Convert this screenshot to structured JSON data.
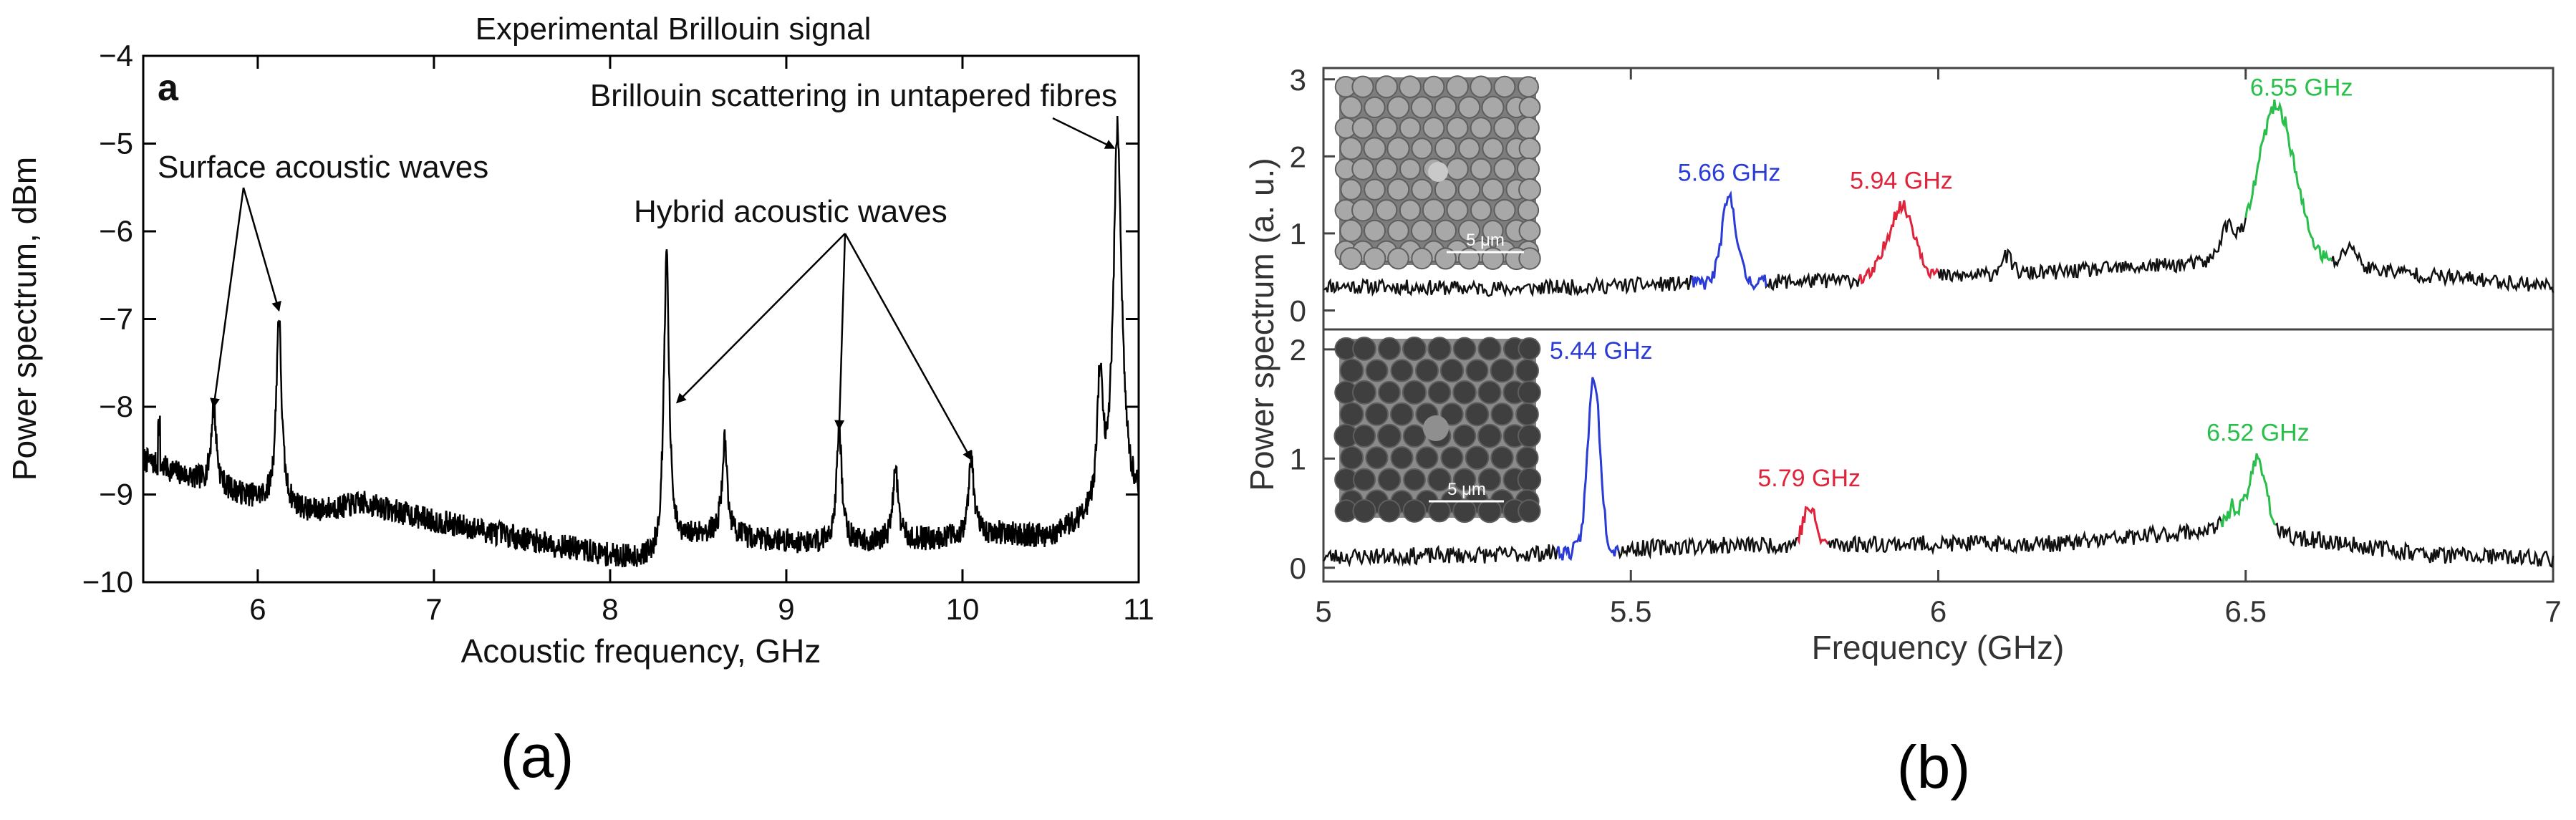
{
  "chart_data": [
    {
      "id": "a",
      "type": "line",
      "title": "Experimental Brillouin signal",
      "panel_letter": "a",
      "xlabel": "Acoustic frequency, GHz",
      "ylabel": "Power spectrum, dBm",
      "xlim": [
        5.35,
        11.0
      ],
      "ylim": [
        -10,
        -4
      ],
      "xticks": [
        6,
        7,
        8,
        9,
        10,
        11
      ],
      "yticks": [
        -10,
        -9,
        -8,
        -7,
        -6,
        -5,
        -4
      ],
      "baseline": [
        [
          5.35,
          -8.6
        ],
        [
          5.6,
          -8.8
        ],
        [
          5.9,
          -9.0
        ],
        [
          6.3,
          -9.2
        ],
        [
          6.6,
          -9.1
        ],
        [
          7.0,
          -9.3
        ],
        [
          7.5,
          -9.5
        ],
        [
          8.0,
          -9.7
        ],
        [
          8.25,
          -9.75
        ],
        [
          8.5,
          -9.45
        ],
        [
          8.8,
          -9.5
        ],
        [
          9.1,
          -9.55
        ],
        [
          9.5,
          -9.55
        ],
        [
          9.9,
          -9.5
        ],
        [
          10.2,
          -9.45
        ],
        [
          10.5,
          -9.5
        ],
        [
          10.7,
          -9.3
        ],
        [
          11.0,
          -9.1
        ]
      ],
      "series": [
        {
          "name": "Brillouin signal",
          "color": "#000000",
          "peaks": [
            [
              5.75,
              -8.0
            ],
            [
              6.12,
              -6.95
            ],
            [
              8.32,
              -6.25
            ],
            [
              8.65,
              -8.4
            ],
            [
              9.3,
              -8.25
            ],
            [
              9.62,
              -8.7
            ],
            [
              10.05,
              -8.6
            ],
            [
              10.78,
              -7.8
            ],
            [
              10.88,
              -4.85
            ]
          ]
        }
      ],
      "annotations": [
        {
          "text": "Surface acoustic waves",
          "targets": [
            [
              5.75,
              -8.05
            ],
            [
              6.12,
              -6.95
            ]
          ]
        },
        {
          "text": "Hybrid acoustic waves",
          "targets": [
            [
              8.38,
              -8.0
            ],
            [
              9.3,
              -8.3
            ],
            [
              10.05,
              -8.65
            ]
          ]
        },
        {
          "text": "Brillouin scattering in untapered fibres",
          "targets": [
            [
              10.86,
              -5.1
            ]
          ]
        }
      ]
    },
    {
      "id": "b-top",
      "type": "line",
      "xlabel": "",
      "ylabel": "",
      "xlim": [
        5,
        7
      ],
      "ylim": [
        -0.2,
        3.1
      ],
      "yticks": [
        0,
        1,
        2,
        3
      ],
      "inset": {
        "scale_bar": "5 μm",
        "lattice": "circular"
      },
      "baseline": [
        [
          5.0,
          0.32
        ],
        [
          5.3,
          0.28
        ],
        [
          5.6,
          0.35
        ],
        [
          5.9,
          0.4
        ],
        [
          6.2,
          0.5
        ],
        [
          6.4,
          0.6
        ],
        [
          6.55,
          0.7
        ],
        [
          6.8,
          0.45
        ],
        [
          7.0,
          0.32
        ]
      ],
      "peaks": [
        {
          "freq": 5.66,
          "height": 1.45,
          "width": 0.012,
          "color": "#2b3bd6",
          "range": [
            5.6,
            5.72
          ],
          "label": "5.66 GHz"
        },
        {
          "freq": 5.94,
          "height": 1.35,
          "width": 0.022,
          "color": "#e0223a",
          "range": [
            5.87,
            6.0
          ],
          "label": "5.94 GHz"
        },
        {
          "freq": 6.55,
          "height": 2.65,
          "width": 0.03,
          "color": "#28c04a",
          "range": [
            6.5,
            6.64
          ],
          "label": "6.55 GHz"
        }
      ],
      "extra_peaks": [
        [
          6.47,
          1.05,
          0.012
        ],
        [
          6.67,
          0.85,
          0.01
        ],
        [
          6.11,
          0.7,
          0.01
        ]
      ]
    },
    {
      "id": "b-bottom",
      "type": "line",
      "xlabel": "Frequency (GHz)",
      "ylabel": "Power spectrum (a. u.)",
      "xlim": [
        5,
        7
      ],
      "ylim": [
        -0.1,
        2.15
      ],
      "xticks": [
        5,
        5.5,
        6,
        6.5,
        7
      ],
      "yticks": [
        0,
        1,
        2
      ],
      "inset": {
        "scale_bar": "5 μm",
        "lattice": "hexagonal"
      },
      "baseline": [
        [
          5.0,
          0.1
        ],
        [
          5.3,
          0.12
        ],
        [
          5.6,
          0.2
        ],
        [
          5.9,
          0.22
        ],
        [
          6.2,
          0.22
        ],
        [
          6.45,
          0.35
        ],
        [
          6.55,
          0.3
        ],
        [
          6.8,
          0.12
        ],
        [
          7.0,
          0.08
        ]
      ],
      "peaks": [
        {
          "freq": 5.44,
          "height": 1.75,
          "width": 0.01,
          "color": "#2b3bd6",
          "range": [
            5.38,
            5.48
          ],
          "label": "5.44 GHz"
        },
        {
          "freq": 5.79,
          "height": 0.55,
          "width": 0.01,
          "color": "#e0223a",
          "range": [
            5.77,
            5.82
          ],
          "label": "5.79 GHz"
        },
        {
          "freq": 6.52,
          "height": 1.0,
          "width": 0.014,
          "color": "#28c04a",
          "range": [
            6.46,
            6.55
          ],
          "label": "6.52 GHz"
        }
      ],
      "extra_peaks": [
        [
          6.48,
          0.55,
          0.012
        ]
      ]
    }
  ],
  "captions": {
    "left": "(a)",
    "right": "(b)"
  }
}
